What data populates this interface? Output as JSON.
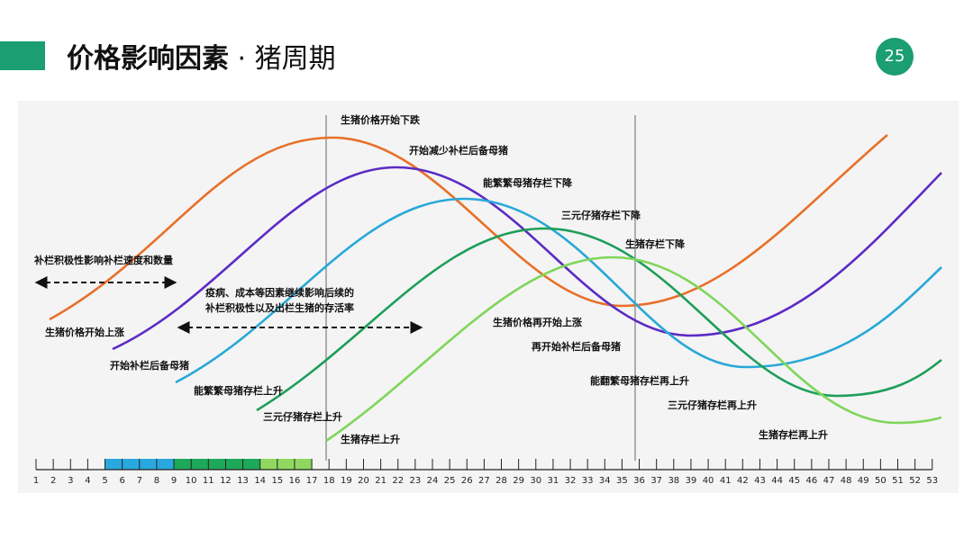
{
  "header": {
    "title_main": "价格影响因素",
    "title_sep": " · ",
    "title_sub": "猪周期",
    "page_number": "25"
  },
  "colors": {
    "accent": "#1a9e72",
    "price_curve": "#e8702a",
    "sow_replenish_curve": "#5b2bc4",
    "breeding_sow_curve": "#29a8d8",
    "piglet_curve": "#1e9e5a",
    "hog_curve": "#7fd65a",
    "segment_blue": "#29a8e0",
    "segment_green": "#1ea85a",
    "segment_light_green": "#8fd860"
  },
  "diagram": {
    "labels": {
      "price_start_up": "生猪价格开始上涨",
      "price_start_down": "生猪价格开始下跌",
      "start_replenish": "开始补栏后备母猪",
      "start_reduce": "开始减少补栏后备母猪",
      "sow_up": "能繁繁母猪存栏上升",
      "sow_down": "能繁繁母猪存栏下降",
      "piglet_up": "三元仔猪存栏上升",
      "piglet_down": "三元仔猪存栏下降",
      "hog_up": "生猪存栏上升",
      "hog_down": "生猪存栏下降",
      "price_up_again": "生猪价格再开始上涨",
      "replenish_again": "再开始补栏后备母猪",
      "sow_up_again": "能翻繁母猪存栏再上升",
      "piglet_up_again": "三元仔猪存栏再上升",
      "hog_up_again": "生猪存栏再上升",
      "replenish_factor": "补栏积极性影响补栏速度和数量",
      "disease_line1": "疫病、成本等因素继续影响后续的",
      "disease_line2": "补栏积极性以及出栏生猪的存活率"
    },
    "timeline": {
      "start": 1,
      "end": 53,
      "colored_segments": [
        {
          "from": 5,
          "to": 9,
          "color": "#29a8e0"
        },
        {
          "from": 9,
          "to": 14,
          "color": "#1ea85a"
        },
        {
          "from": 14,
          "to": 17,
          "color": "#8fd860"
        }
      ],
      "markers": [
        17.2,
        35.3
      ]
    }
  }
}
